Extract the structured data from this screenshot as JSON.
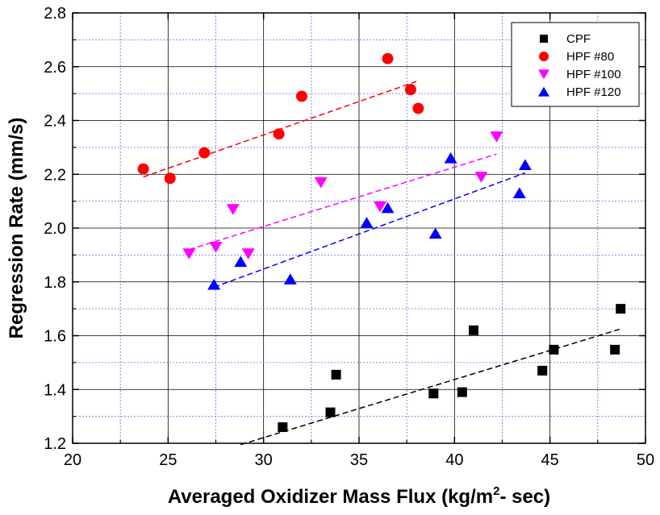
{
  "chart_data": {
    "type": "scatter",
    "title": "",
    "xlabel": "Averaged Oxidizer Mass Flux (kg/m",
    "xlabel_sup": "2",
    "xlabel_tail": "- sec)",
    "ylabel": "Regression Rate (mm/s)",
    "xlim": [
      20,
      50
    ],
    "ylim": [
      1.2,
      2.8
    ],
    "x_ticks": [
      "20",
      "25",
      "30",
      "35",
      "40",
      "45",
      "50"
    ],
    "y_ticks": [
      "1.2",
      "1.4",
      "1.6",
      "1.8",
      "2.0",
      "2.2",
      "2.4",
      "2.6",
      "2.8"
    ],
    "grid": true,
    "legend_position": "top-right",
    "series": [
      {
        "name": "CPF",
        "marker": "square",
        "color": "#000000",
        "points": [
          [
            31.0,
            1.26
          ],
          [
            33.5,
            1.315
          ],
          [
            33.8,
            1.455
          ],
          [
            38.9,
            1.385
          ],
          [
            40.4,
            1.39
          ],
          [
            41.0,
            1.62
          ],
          [
            44.6,
            1.47
          ],
          [
            45.2,
            1.548
          ],
          [
            48.4,
            1.548
          ],
          [
            48.7,
            1.7
          ]
        ],
        "fit": [
          [
            28.8,
            1.195
          ],
          [
            48.7,
            1.625
          ]
        ]
      },
      {
        "name": "HPF #80",
        "marker": "circle",
        "color": "#ff0000",
        "points": [
          [
            23.7,
            2.22
          ],
          [
            25.1,
            2.185
          ],
          [
            26.9,
            2.28
          ],
          [
            30.8,
            2.35
          ],
          [
            32.0,
            2.49
          ],
          [
            36.5,
            2.63
          ],
          [
            37.7,
            2.515
          ],
          [
            38.1,
            2.445
          ]
        ],
        "fit": [
          [
            23.7,
            2.19
          ],
          [
            38.0,
            2.545
          ]
        ]
      },
      {
        "name": "HPF #100",
        "marker": "triangle-down",
        "color": "#ff00ff",
        "points": [
          [
            26.1,
            1.905
          ],
          [
            27.5,
            1.93
          ],
          [
            28.4,
            2.07
          ],
          [
            29.2,
            1.905
          ],
          [
            33.0,
            2.17
          ],
          [
            36.1,
            2.08
          ],
          [
            41.4,
            2.19
          ],
          [
            42.2,
            2.34
          ]
        ],
        "fit": [
          [
            26.1,
            1.92
          ],
          [
            42.2,
            2.275
          ]
        ]
      },
      {
        "name": "HPF #120",
        "marker": "triangle-up",
        "color": "#0000ff",
        "points": [
          [
            27.4,
            1.79
          ],
          [
            28.8,
            1.875
          ],
          [
            31.4,
            1.81
          ],
          [
            35.4,
            2.02
          ],
          [
            36.5,
            2.075
          ],
          [
            39.0,
            1.98
          ],
          [
            39.8,
            2.26
          ],
          [
            43.4,
            2.13
          ],
          [
            43.7,
            2.235
          ]
        ],
        "fit": [
          [
            27.4,
            1.78
          ],
          [
            43.7,
            2.205
          ]
        ]
      }
    ]
  }
}
